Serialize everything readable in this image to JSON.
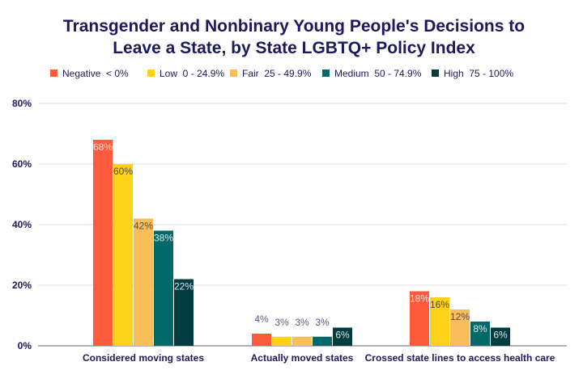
{
  "chart_data": {
    "type": "bar",
    "title_lines": [
      "Transgender and Nonbinary Young People's Decisions to",
      "Leave a State, by State LGBTQ+ Policy Index"
    ],
    "categories": [
      "Considered moving states",
      "Actually moved states",
      "Crossed state lines to access health care"
    ],
    "series": [
      {
        "name": "Negative  < 0%",
        "color": "#fe5b3c",
        "label_color": "#f6e2de",
        "values": [
          68,
          4,
          18
        ]
      },
      {
        "name": "Low  0 - 24.9%",
        "color": "#ffd21a",
        "label_color": "#4a4a3a",
        "values": [
          60,
          3,
          16
        ]
      },
      {
        "name": "Fair  25 - 49.9%",
        "color": "#f8be5a",
        "label_color": "#5a4a4a",
        "values": [
          42,
          3,
          12
        ]
      },
      {
        "name": "Medium  50 - 74.9%",
        "color": "#026869",
        "label_color": "#d9e8e8",
        "values": [
          38,
          3,
          8
        ]
      },
      {
        "name": "High  75 - 100%",
        "color": "#033c40",
        "label_color": "#d9e4e4",
        "values": [
          22,
          6,
          6
        ]
      }
    ],
    "data_labels": [
      [
        "68%",
        "4%",
        "18%"
      ],
      [
        "60%",
        "3%",
        "16%"
      ],
      [
        "42%",
        "3%",
        "12%"
      ],
      [
        "38%",
        "3%",
        "8%"
      ],
      [
        "22%",
        "6%",
        "6%"
      ]
    ],
    "y_ticks": [
      "0%",
      "20%",
      "40%",
      "60%",
      "80%"
    ],
    "ylim": [
      0,
      80
    ],
    "grid": true,
    "legend_position": "top",
    "xlabel": "",
    "ylabel": ""
  }
}
